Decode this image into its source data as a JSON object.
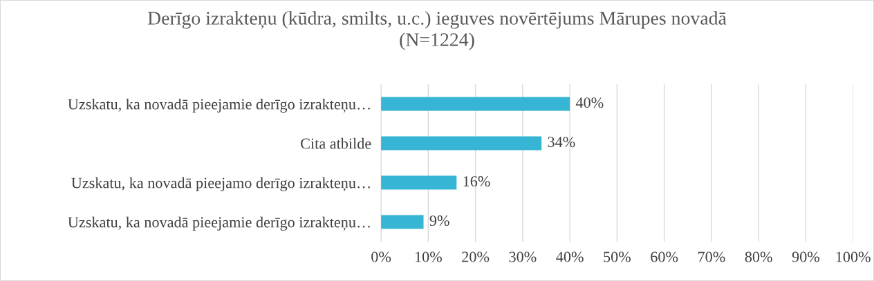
{
  "chart_data": {
    "type": "bar",
    "orientation": "horizontal",
    "title": "Derīgo izrakteņu (kūdra, smilts, u.c.) ieguves novērtējums Mārupes novadā\n(N=1224)",
    "categories": [
      "Uzskatu, ka novadā pieejamie derīgo izrakteņu…",
      "Cita atbilde",
      "Uzskatu, ka novadā pieejamo derīgo izrakteņu…",
      "Uzskatu, ka novadā pieejamie derīgo izrakteņu…"
    ],
    "values": [
      40,
      34,
      16,
      9
    ],
    "value_labels": [
      "40%",
      "34%",
      "16%",
      "9%"
    ],
    "color": "#36b5d4",
    "xlim": [
      0,
      100
    ],
    "xticks": [
      {
        "value": 0,
        "label": "0%"
      },
      {
        "value": 10,
        "label": "10%"
      },
      {
        "value": 20,
        "label": "20%"
      },
      {
        "value": 30,
        "label": "30%"
      },
      {
        "value": 40,
        "label": "40%"
      },
      {
        "value": 50,
        "label": "50%"
      },
      {
        "value": 60,
        "label": "60%"
      },
      {
        "value": 70,
        "label": "70%"
      },
      {
        "value": 80,
        "label": "80%"
      },
      {
        "value": 90,
        "label": "90%"
      },
      {
        "value": 100,
        "label": "100%"
      }
    ],
    "grid": "x"
  }
}
